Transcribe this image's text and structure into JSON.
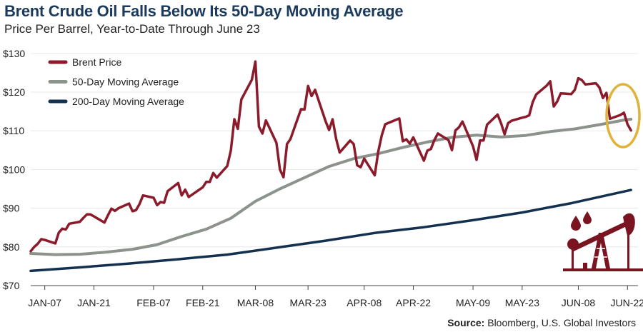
{
  "title": "Brent Crude Oil Falls Below Its 50-Day Moving Average",
  "subtitle": "Price Per Barrel, Year-to-Date Through June 23",
  "source": {
    "label": "Source:",
    "text": "Bloomberg, U.S. Global Investors"
  },
  "colors": {
    "brent": "#8b1a2b",
    "ma50": "#8c928c",
    "ma200": "#14304f",
    "highlight": "#e0b23a",
    "icon": "#7a1420"
  },
  "icon": "oil-pumpjack-icon",
  "chart_data": {
    "type": "line",
    "ylim": [
      70,
      132
    ],
    "yticks": [
      70,
      80,
      90,
      100,
      110,
      120,
      130
    ],
    "ytick_labels": [
      "$70",
      "$80",
      "$90",
      "$100",
      "$110",
      "$120",
      "$130"
    ],
    "xlim": [
      "2022-01-03",
      "2022-06-25"
    ],
    "xticks": [
      "2022-01-07",
      "2022-01-21",
      "2022-02-07",
      "2022-02-21",
      "2022-03-08",
      "2022-03-23",
      "2022-04-08",
      "2022-04-22",
      "2022-05-09",
      "2022-05-23",
      "2022-06-08",
      "2022-06-22"
    ],
    "xtick_labels": [
      "JAN-07",
      "JAN-21",
      "FEB-07",
      "FEB-21",
      "MAR-08",
      "MAR-23",
      "APR-08",
      "APR-22",
      "MAY-09",
      "MAY-23",
      "JUN-08",
      "JUN-22"
    ],
    "legend_position": "top-left",
    "annotation": "circle highlighting the crossover near June 23",
    "series": [
      {
        "name": "Brent Price",
        "x": [
          "2022-01-03",
          "2022-01-04",
          "2022-01-05",
          "2022-01-06",
          "2022-01-07",
          "2022-01-10",
          "2022-01-11",
          "2022-01-12",
          "2022-01-13",
          "2022-01-14",
          "2022-01-17",
          "2022-01-18",
          "2022-01-19",
          "2022-01-20",
          "2022-01-21",
          "2022-01-24",
          "2022-01-25",
          "2022-01-26",
          "2022-01-27",
          "2022-01-28",
          "2022-01-31",
          "2022-02-01",
          "2022-02-02",
          "2022-02-03",
          "2022-02-04",
          "2022-02-07",
          "2022-02-08",
          "2022-02-09",
          "2022-02-10",
          "2022-02-11",
          "2022-02-14",
          "2022-02-15",
          "2022-02-16",
          "2022-02-17",
          "2022-02-18",
          "2022-02-21",
          "2022-02-22",
          "2022-02-23",
          "2022-02-24",
          "2022-02-25",
          "2022-02-28",
          "2022-03-01",
          "2022-03-02",
          "2022-03-03",
          "2022-03-04",
          "2022-03-07",
          "2022-03-08",
          "2022-03-09",
          "2022-03-10",
          "2022-03-11",
          "2022-03-14",
          "2022-03-15",
          "2022-03-16",
          "2022-03-17",
          "2022-03-18",
          "2022-03-21",
          "2022-03-22",
          "2022-03-23",
          "2022-03-24",
          "2022-03-25",
          "2022-03-28",
          "2022-03-29",
          "2022-03-30",
          "2022-03-31",
          "2022-04-01",
          "2022-04-04",
          "2022-04-05",
          "2022-04-06",
          "2022-04-07",
          "2022-04-08",
          "2022-04-11",
          "2022-04-12",
          "2022-04-13",
          "2022-04-14",
          "2022-04-18",
          "2022-04-19",
          "2022-04-20",
          "2022-04-21",
          "2022-04-22",
          "2022-04-25",
          "2022-04-26",
          "2022-04-27",
          "2022-04-28",
          "2022-04-29",
          "2022-05-02",
          "2022-05-03",
          "2022-05-04",
          "2022-05-05",
          "2022-05-06",
          "2022-05-09",
          "2022-05-10",
          "2022-05-11",
          "2022-05-12",
          "2022-05-13",
          "2022-05-16",
          "2022-05-17",
          "2022-05-18",
          "2022-05-19",
          "2022-05-20",
          "2022-05-23",
          "2022-05-24",
          "2022-05-25",
          "2022-05-26",
          "2022-05-27",
          "2022-05-30",
          "2022-05-31",
          "2022-06-01",
          "2022-06-02",
          "2022-06-03",
          "2022-06-06",
          "2022-06-07",
          "2022-06-08",
          "2022-06-09",
          "2022-06-10",
          "2022-06-13",
          "2022-06-14",
          "2022-06-15",
          "2022-06-16",
          "2022-06-17",
          "2022-06-20",
          "2022-06-21",
          "2022-06-22",
          "2022-06-23"
        ],
        "values": [
          78.9,
          80.0,
          80.8,
          82.0,
          81.8,
          80.9,
          83.7,
          84.7,
          84.5,
          86.0,
          86.5,
          87.5,
          88.4,
          88.4,
          87.9,
          86.3,
          88.2,
          89.9,
          89.3,
          90.0,
          91.2,
          89.2,
          89.5,
          91.1,
          93.3,
          92.7,
          90.8,
          91.6,
          91.4,
          94.4,
          96.5,
          93.3,
          94.8,
          92.9,
          93.5,
          95.4,
          96.8,
          96.8,
          99.1,
          97.9,
          100.9,
          104.9,
          113.0,
          110.5,
          118.1,
          123.2,
          127.9,
          111.1,
          109.3,
          112.7,
          106.9,
          100.0,
          98.0,
          106.6,
          107.9,
          115.6,
          115.5,
          121.6,
          119.0,
          120.6,
          112.5,
          110.2,
          113.0,
          107.9,
          104.4,
          107.5,
          106.6,
          101.1,
          100.6,
          102.8,
          98.5,
          104.6,
          108.8,
          111.7,
          113.2,
          107.3,
          107.8,
          106.7,
          108.3,
          102.3,
          104.9,
          105.3,
          107.6,
          109.3,
          107.6,
          105.0,
          110.1,
          110.9,
          112.4,
          106.0,
          102.5,
          107.5,
          107.5,
          111.6,
          114.2,
          111.9,
          109.1,
          112.0,
          112.6,
          113.4,
          113.6,
          114.0,
          117.4,
          119.4,
          121.7,
          122.8,
          116.3,
          117.6,
          119.7,
          119.5,
          120.6,
          123.6,
          123.1,
          122.0,
          122.3,
          121.2,
          118.5,
          119.8,
          113.1,
          114.1,
          114.7,
          111.7,
          110.1
        ]
      },
      {
        "name": "50-Day Moving Average",
        "x": [
          "2022-01-03",
          "2022-01-10",
          "2022-01-17",
          "2022-01-24",
          "2022-02-01",
          "2022-02-08",
          "2022-02-15",
          "2022-02-22",
          "2022-03-01",
          "2022-03-08",
          "2022-03-15",
          "2022-03-22",
          "2022-03-29",
          "2022-04-05",
          "2022-04-12",
          "2022-04-19",
          "2022-04-26",
          "2022-05-03",
          "2022-05-10",
          "2022-05-17",
          "2022-05-24",
          "2022-05-31",
          "2022-06-07",
          "2022-06-14",
          "2022-06-21",
          "2022-06-23"
        ],
        "values": [
          78.3,
          78.0,
          78.1,
          78.6,
          79.4,
          80.6,
          82.7,
          84.6,
          87.4,
          91.8,
          95.0,
          97.9,
          100.8,
          102.8,
          104.1,
          105.7,
          107.1,
          108.3,
          108.9,
          108.4,
          108.8,
          109.8,
          110.5,
          111.6,
          112.8,
          113.0
        ]
      },
      {
        "name": "200-Day Moving Average",
        "x": [
          "2022-01-03",
          "2022-01-17",
          "2022-01-31",
          "2022-02-14",
          "2022-02-28",
          "2022-03-14",
          "2022-03-28",
          "2022-04-11",
          "2022-04-25",
          "2022-05-09",
          "2022-05-23",
          "2022-06-06",
          "2022-06-23"
        ],
        "values": [
          73.8,
          74.7,
          75.7,
          76.8,
          78.0,
          79.8,
          81.6,
          83.6,
          85.1,
          86.9,
          88.9,
          91.3,
          94.7
        ]
      }
    ]
  }
}
